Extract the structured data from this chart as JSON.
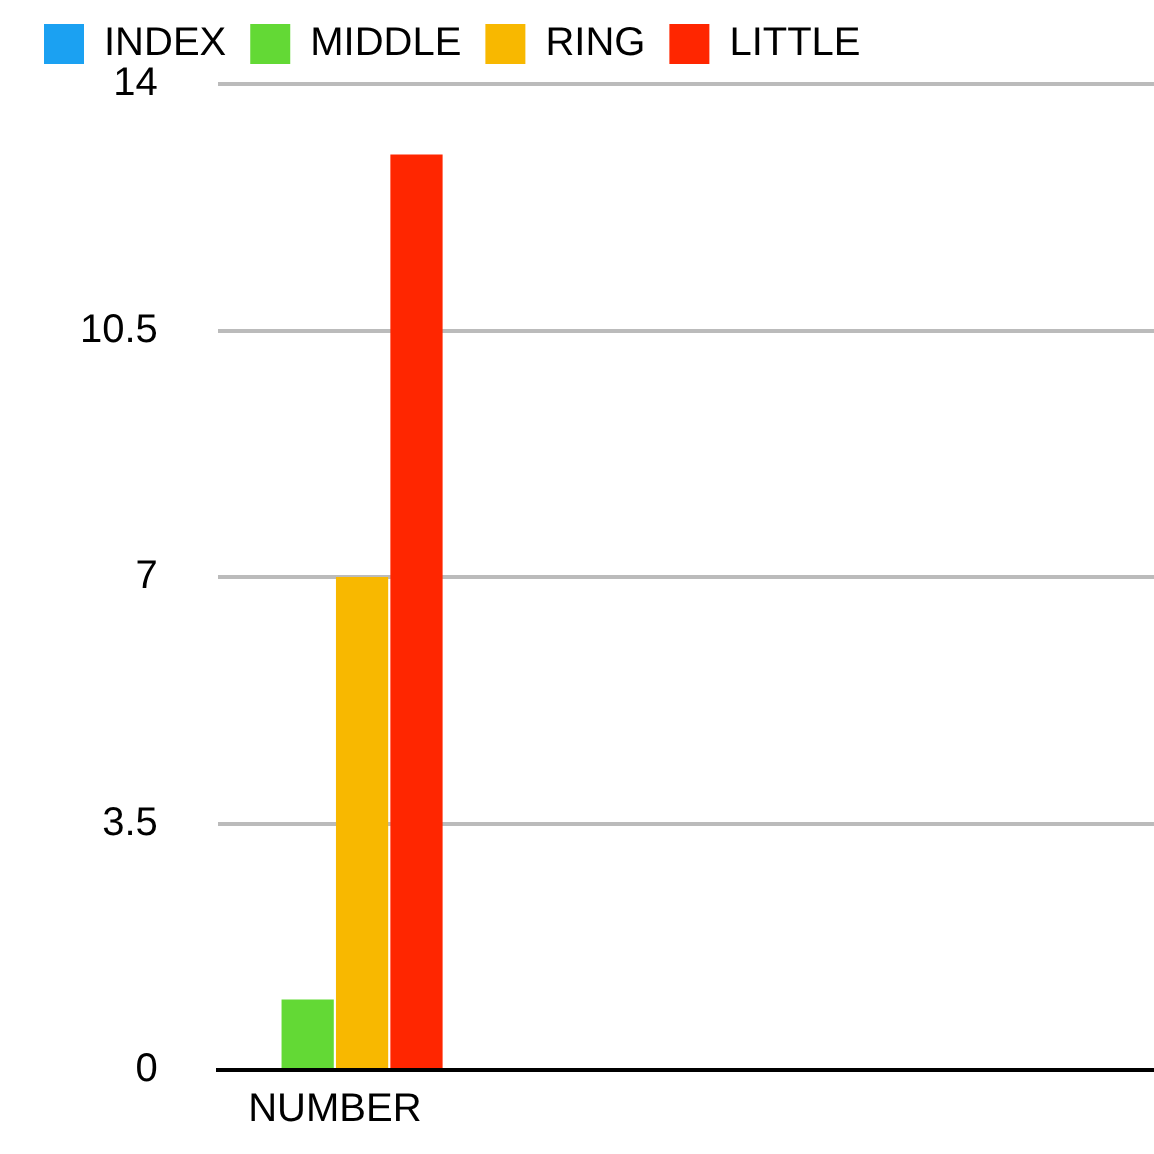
{
  "chart_data": {
    "type": "bar",
    "categories": [
      "NUMBER",
      null,
      null,
      null
    ],
    "series": [
      {
        "name": "INDEX",
        "color": "#1ba1f2",
        "values": [
          0,
          null,
          null,
          null
        ]
      },
      {
        "name": "MIDDLE",
        "color": "#63d935",
        "values": [
          1,
          null,
          null,
          null
        ]
      },
      {
        "name": "RING",
        "color": "#f8b800",
        "values": [
          7,
          null,
          null,
          null
        ]
      },
      {
        "name": "LITTLE",
        "color": "#ff2600",
        "values": [
          13,
          null,
          null,
          null
        ]
      }
    ],
    "ylim": [
      0,
      14
    ],
    "yticks": [
      0,
      3.5,
      7,
      10.5,
      14
    ],
    "grid": "y",
    "legend": "top left"
  }
}
